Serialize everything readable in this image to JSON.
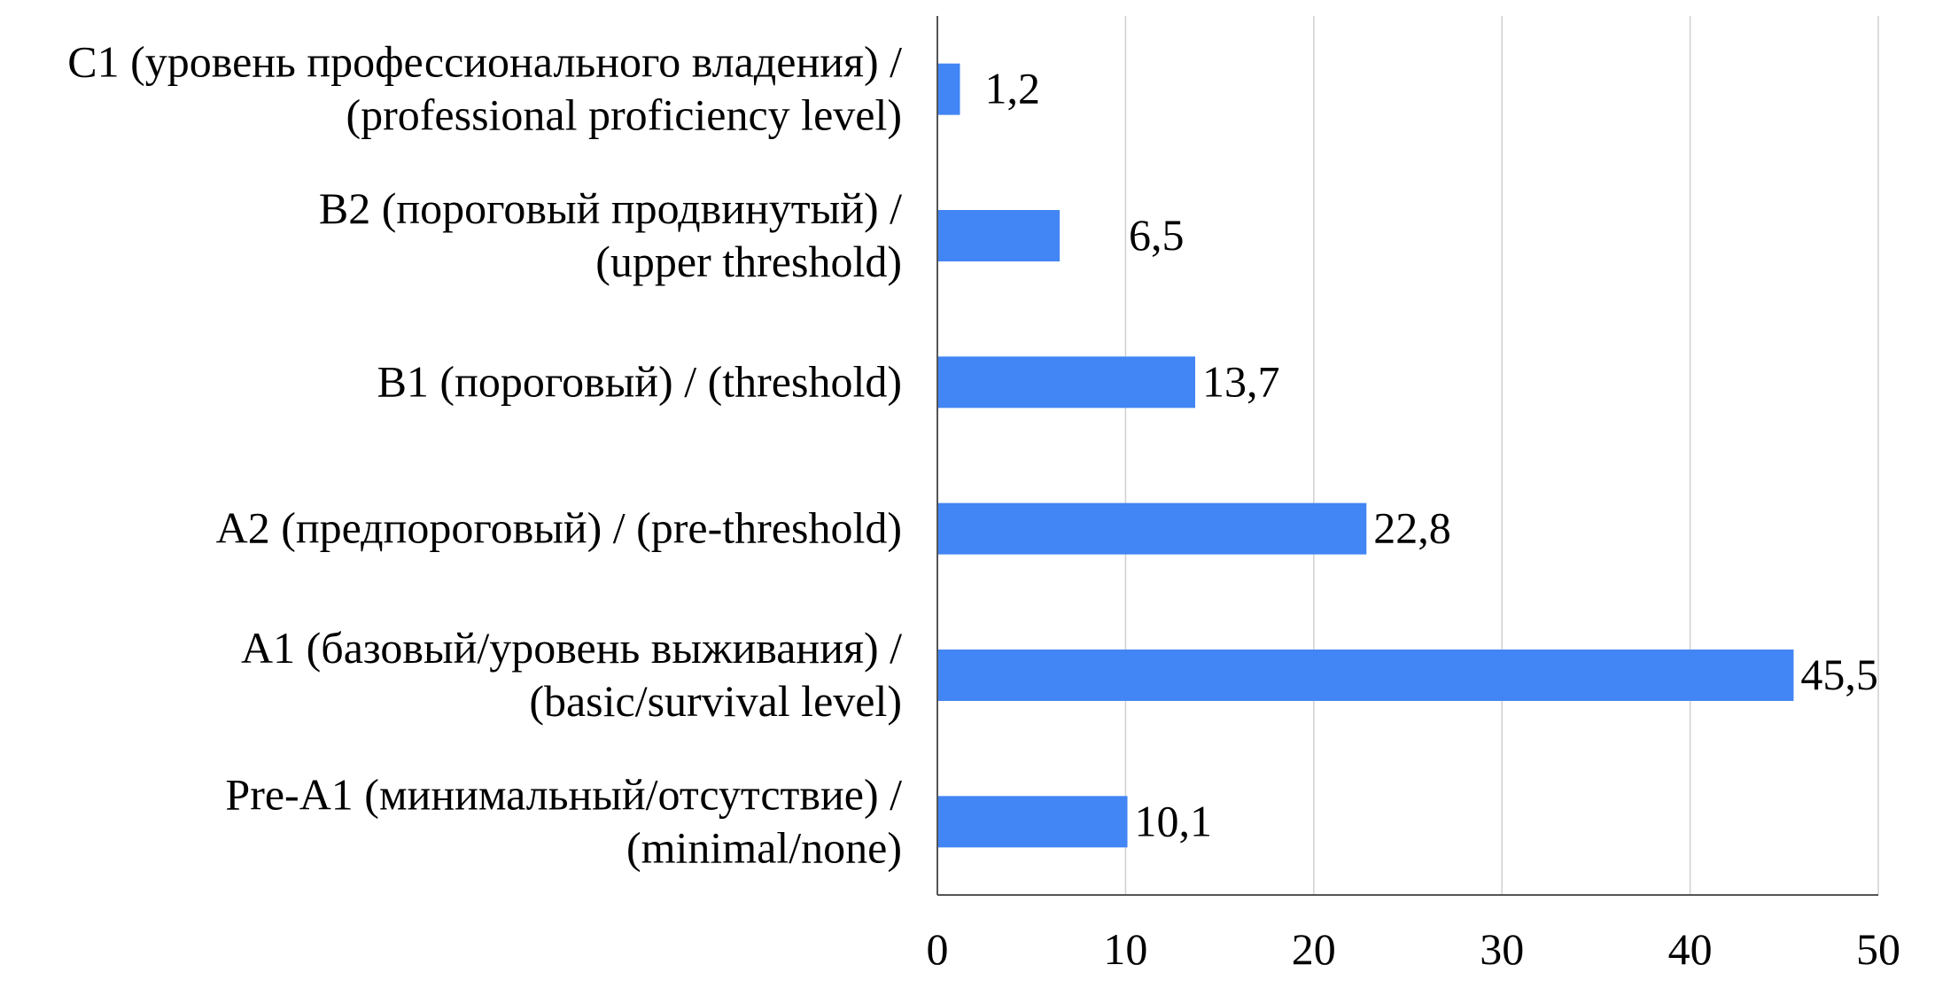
{
  "chart_data": {
    "type": "bar",
    "orientation": "horizontal",
    "categories": [
      [
        "C1 (уровень профессионального владения) /",
        "(professional proficiency level)"
      ],
      [
        "B2 (пороговый продвинутый) /",
        "(upper threshold)"
      ],
      [
        "B1 (пороговый) / (threshold)"
      ],
      [
        "A2 (предпороговый) / (pre-threshold)"
      ],
      [
        "A1 (базовый/уровень выживания) /",
        "(basic/survival level)"
      ],
      [
        "Pre-A1 (минимальный/отсутствие) /",
        "(minimal/none)"
      ]
    ],
    "values": [
      1.2,
      6.5,
      13.7,
      22.8,
      45.5,
      10.1
    ],
    "value_labels": [
      "1,2",
      "6,5",
      "13,7",
      "22,8",
      "45,5",
      "10,1"
    ],
    "xlim": [
      0,
      50
    ],
    "xticks": [
      0,
      10,
      20,
      30,
      40,
      50
    ],
    "xtick_labels": [
      "0",
      "10",
      "20",
      "30",
      "40",
      "50"
    ],
    "grid": "vertical",
    "bar_color": "#4285f4",
    "grid_color": "#d0d0d0",
    "axis_color": "#555555"
  }
}
